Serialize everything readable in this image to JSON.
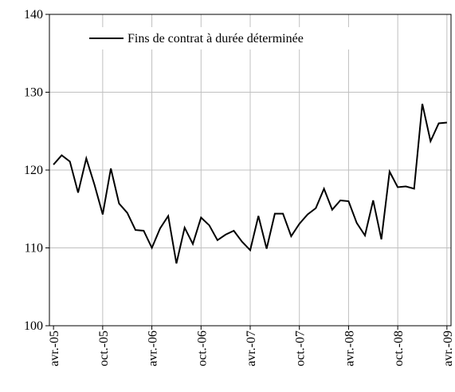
{
  "chart_data": {
    "type": "line",
    "categories": [
      "avr.-05",
      null,
      null,
      null,
      null,
      null,
      "oct.-05",
      null,
      null,
      null,
      null,
      null,
      "avr.-06",
      null,
      null,
      null,
      null,
      null,
      "oct.-06",
      null,
      null,
      null,
      null,
      null,
      "avr.-07",
      null,
      null,
      null,
      null,
      null,
      "oct.-07",
      null,
      null,
      null,
      null,
      null,
      "avr.-08",
      null,
      null,
      null,
      null,
      null,
      "oct.-08",
      null,
      null,
      null,
      null,
      null,
      "avr.-09"
    ],
    "series": [
      {
        "name": "Fins de contrat à durée déterminée",
        "color": "#000000",
        "values": [
          120.7,
          121.9,
          121.1,
          117.1,
          121.5,
          118.1,
          114.3,
          120.2,
          115.7,
          114.5,
          112.3,
          112.2,
          110.0,
          112.5,
          114.1,
          108.0,
          112.6,
          110.5,
          113.9,
          112.9,
          111.0,
          111.7,
          112.2,
          110.8,
          109.7,
          114.1,
          109.9,
          114.4,
          114.4,
          111.5,
          113.1,
          114.3,
          115.1,
          117.6,
          114.9,
          116.1,
          116.0,
          113.2,
          111.6,
          116.1,
          111.1,
          119.8,
          117.8,
          117.9,
          117.6,
          128.5,
          123.7,
          126.0,
          126.1
        ]
      }
    ],
    "ylim": [
      100,
      140
    ],
    "yticks": [
      100,
      110,
      120,
      130,
      140
    ],
    "grid": true,
    "legend": "top"
  }
}
